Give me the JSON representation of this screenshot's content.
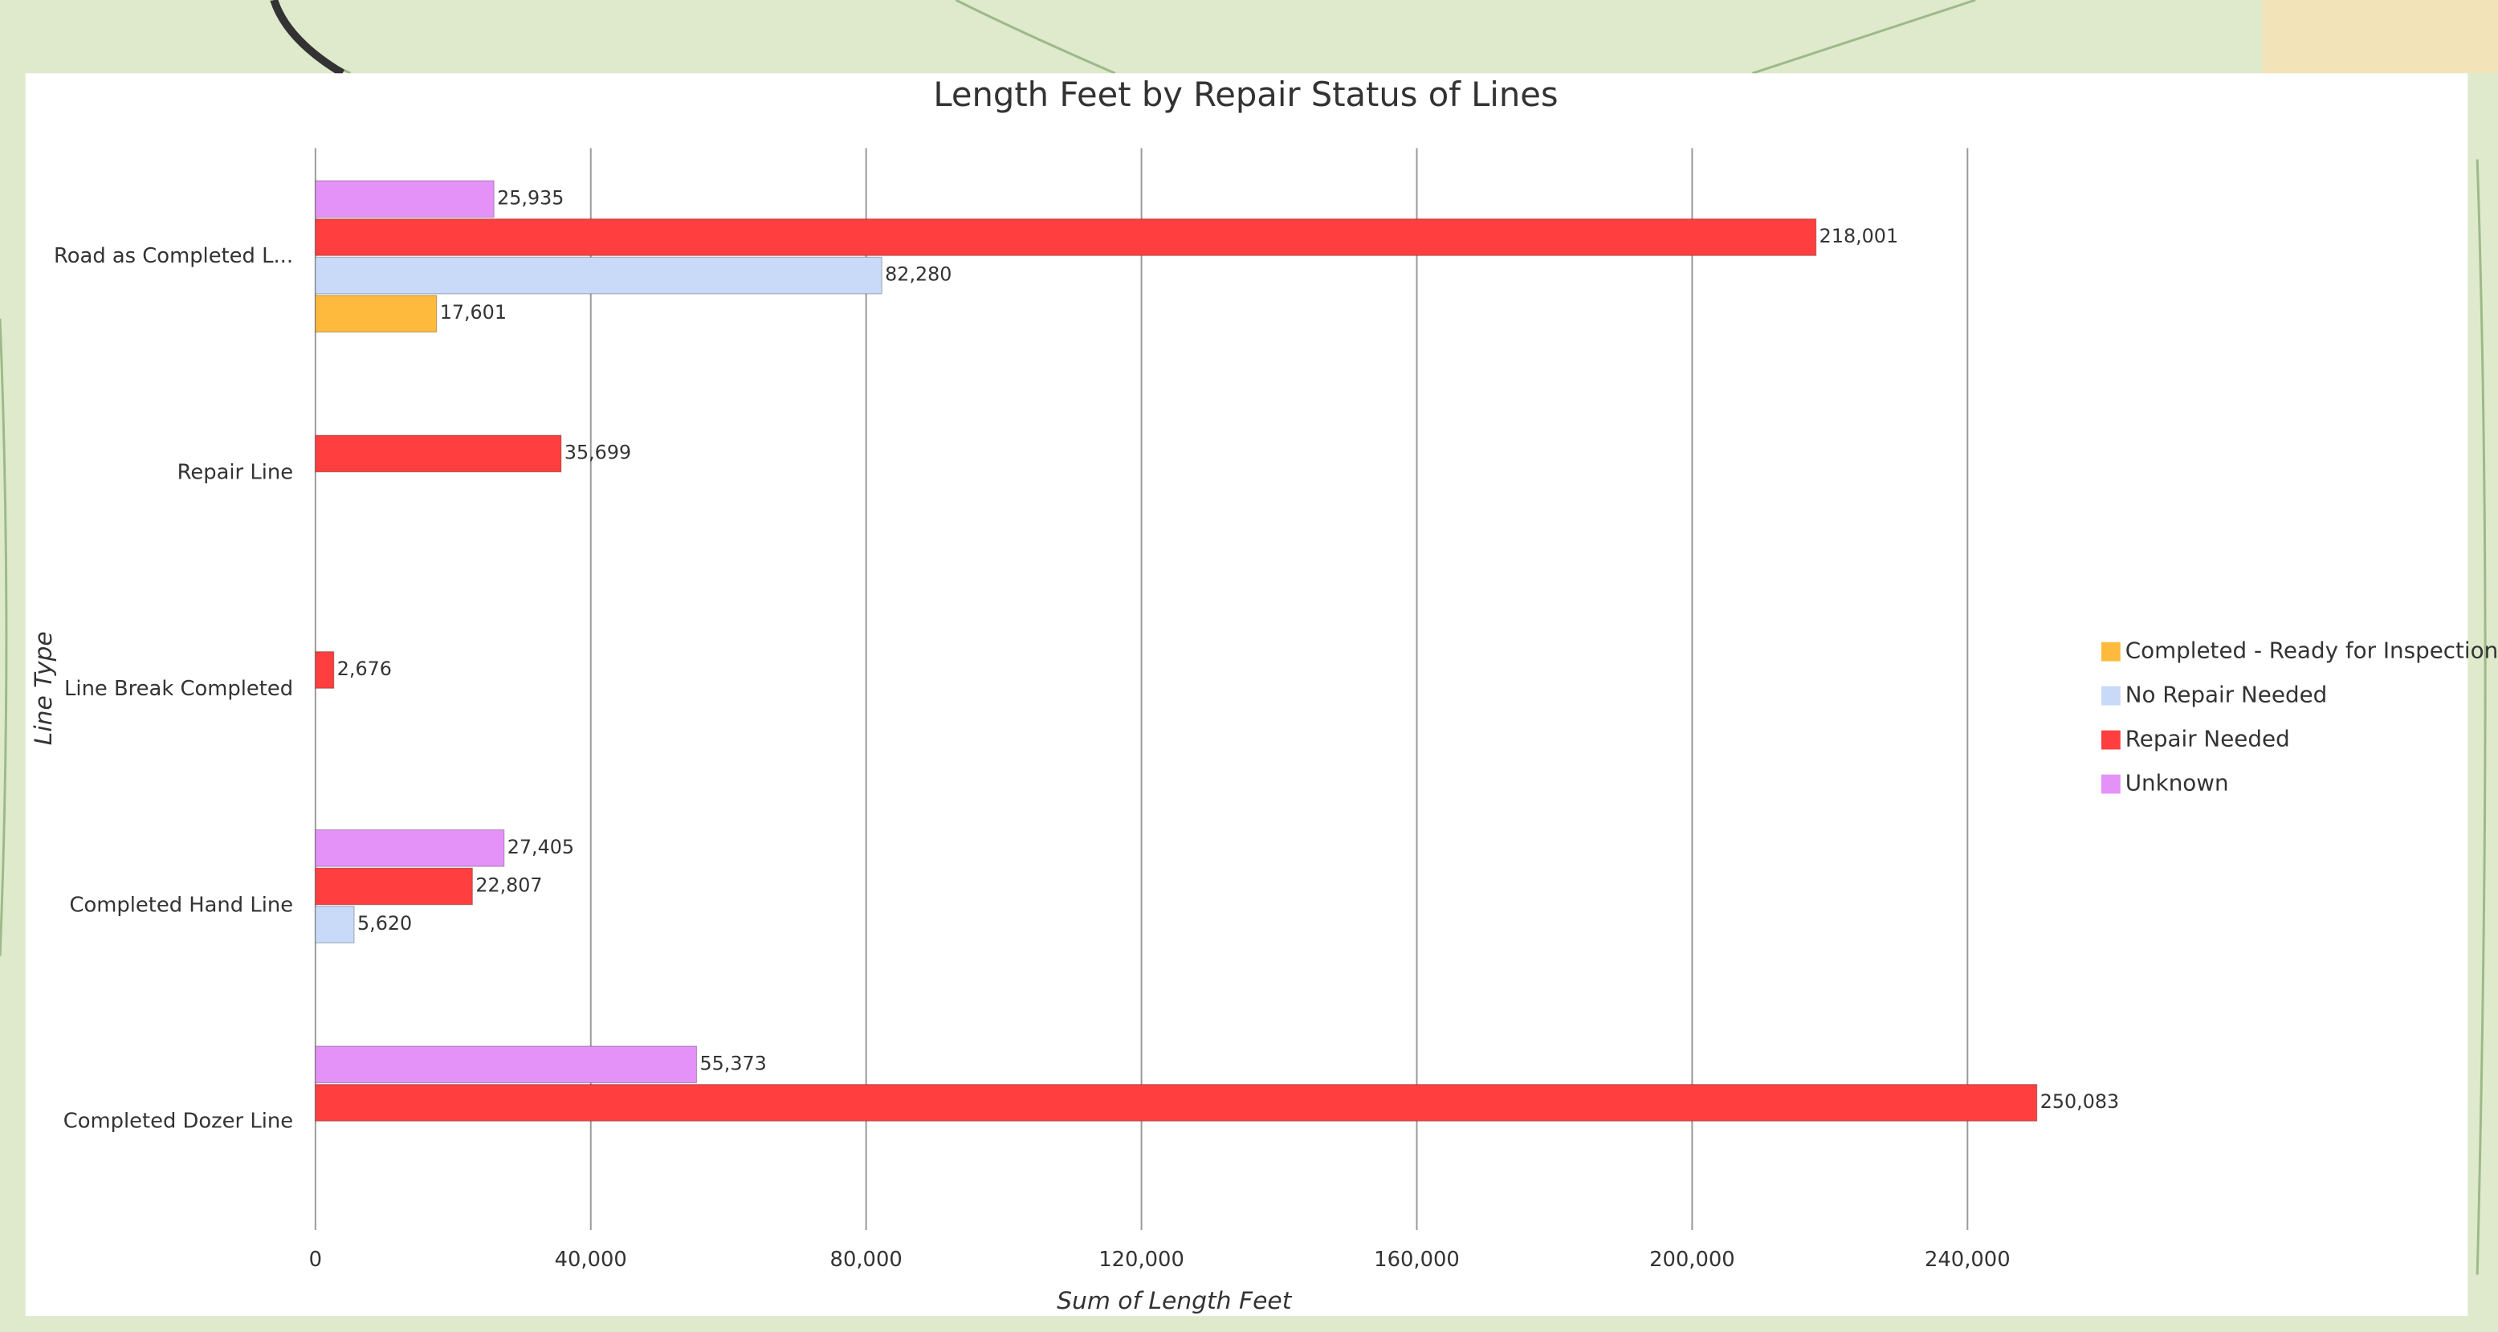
{
  "chart_data": {
    "type": "hbar",
    "title": "Length Feet by Repair Status of Lines",
    "x_label": "Sum of Length Feet",
    "y_label": "Line Type",
    "categories": [
      "Road as Completed L...",
      "Repair Line",
      "Line Break Completed",
      "Completed Hand Line",
      "Completed Dozer Line"
    ],
    "series": [
      {
        "name": "Completed - Ready for Inspection",
        "color": "#fdba3d",
        "values": [
          17601,
          null,
          null,
          null,
          null
        ],
        "value_labels": [
          "17,601",
          null,
          null,
          null,
          null
        ]
      },
      {
        "name": "No Repair Needed",
        "color": "#c9d9f8",
        "values": [
          82280,
          null,
          null,
          5620,
          null
        ],
        "value_labels": [
          "82,280",
          null,
          null,
          "5,620",
          null
        ]
      },
      {
        "name": "Repair Needed",
        "color": "#ff3f3f",
        "values": [
          218001,
          35699,
          2676,
          22807,
          250083
        ],
        "value_labels": [
          "218,001",
          "35,699",
          "2,676",
          "22,807",
          "250,083"
        ]
      },
      {
        "name": "Unknown",
        "color": "#e492f8",
        "values": [
          25935,
          null,
          null,
          27405,
          55373
        ],
        "value_labels": [
          "25,935",
          null,
          null,
          "27,405",
          "55,373"
        ]
      }
    ],
    "xlim": [
      0,
      260000
    ],
    "xticks": [
      0,
      {
        "value": 40000,
        "label": "40,000"
      },
      {
        "value": 80000,
        "label": "80,000"
      },
      {
        "value": 120000,
        "label": "120,000"
      },
      {
        "value": 160000,
        "label": "160,000"
      },
      {
        "value": 200000,
        "label": "200,000"
      },
      {
        "value": 240000,
        "label": "240,000"
      }
    ],
    "grid": true,
    "legend": "right"
  }
}
